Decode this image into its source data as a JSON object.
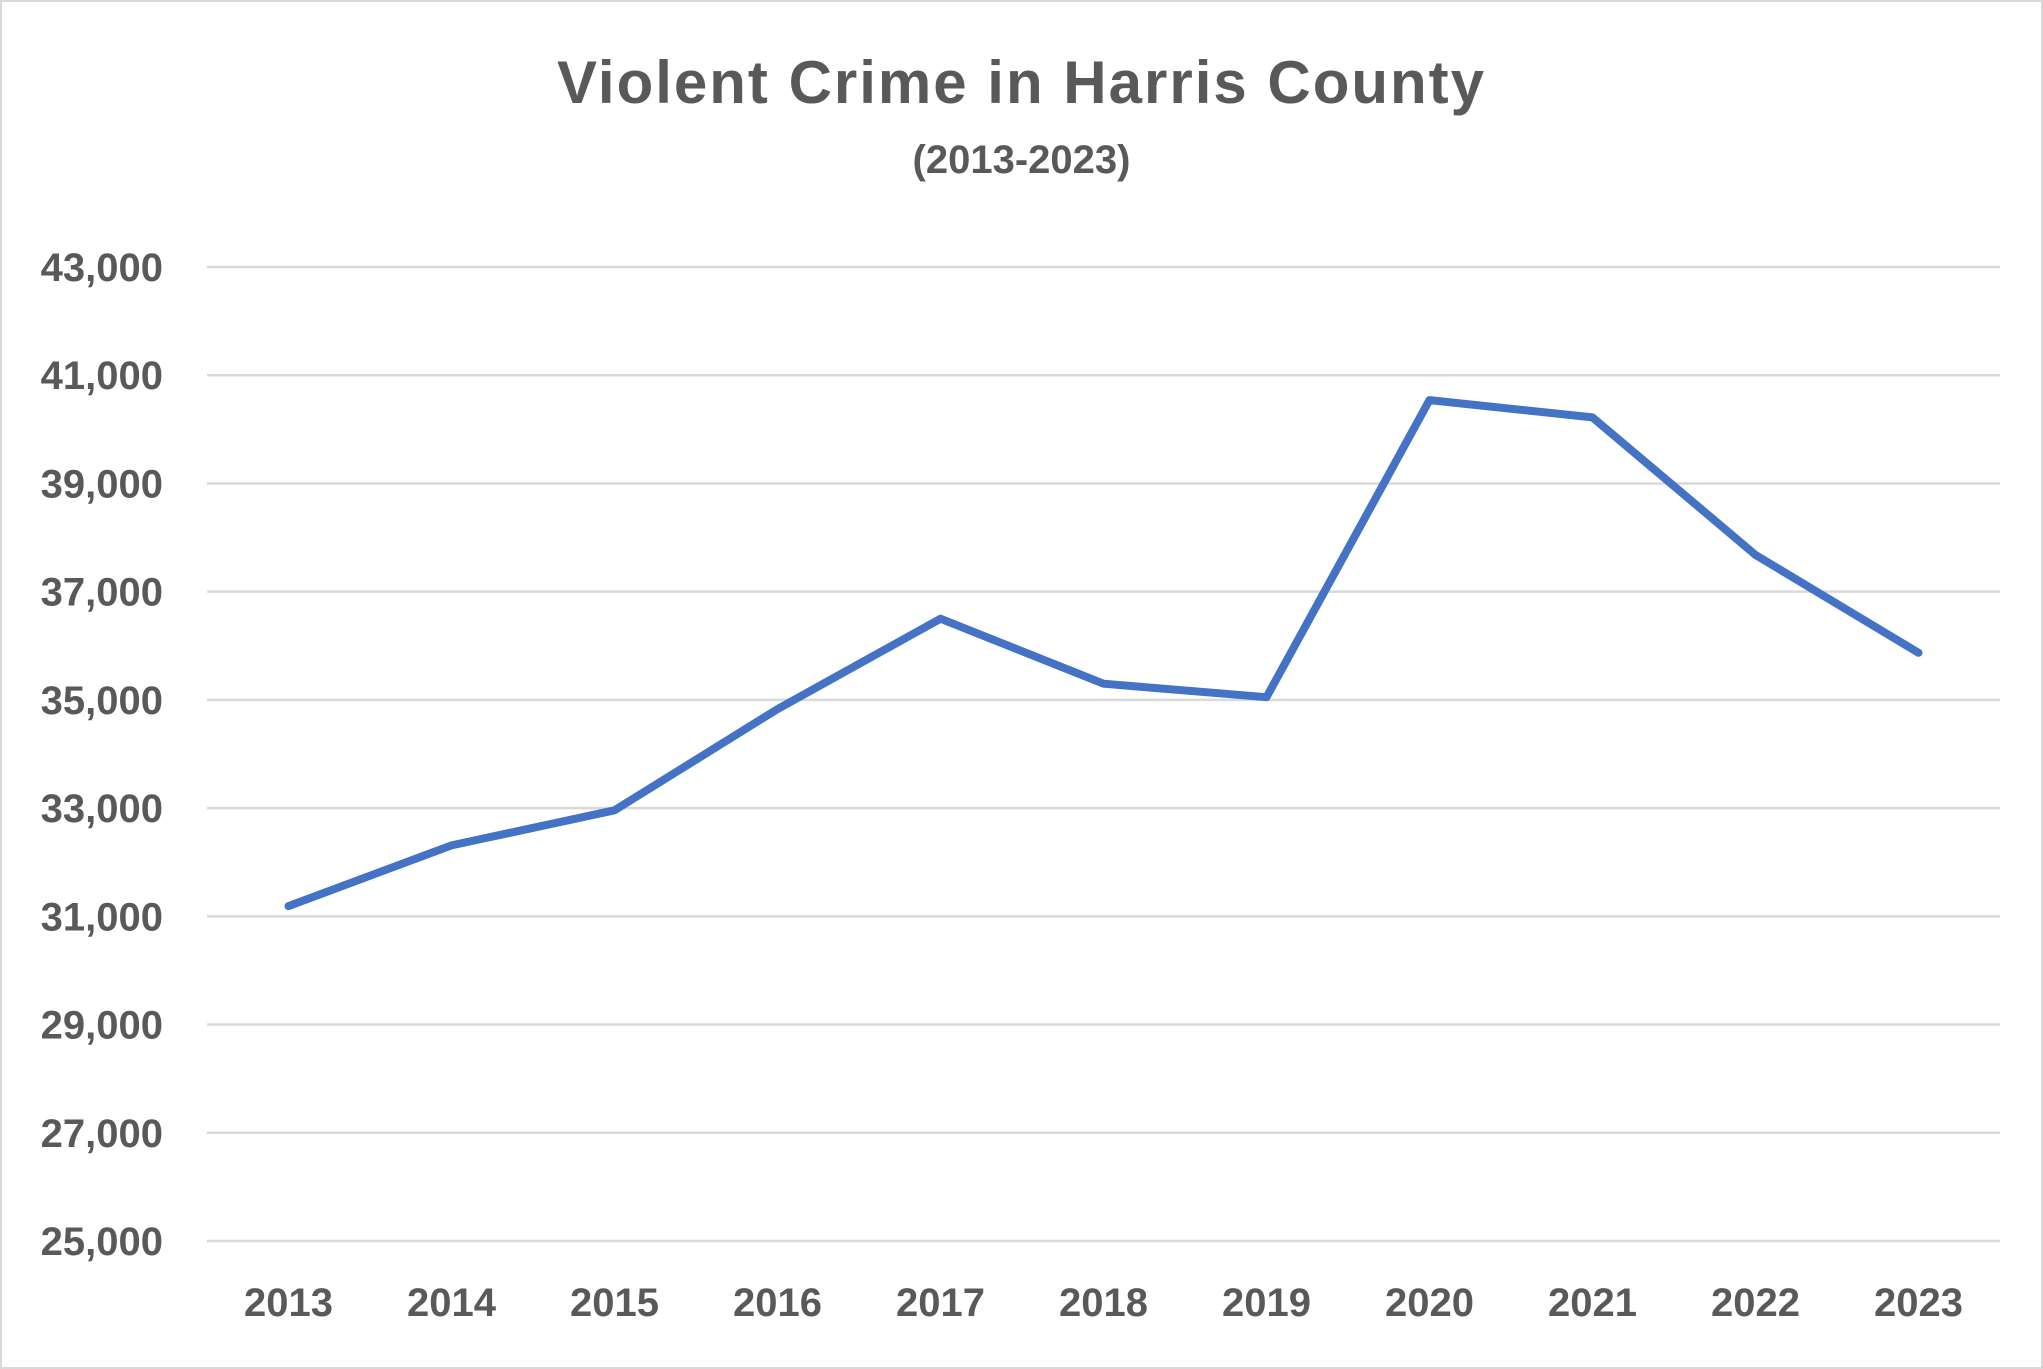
{
  "chart_data": {
    "type": "line",
    "title": "Violent Crime in Harris County",
    "subtitle": "(2013-2023)",
    "xlabel": "",
    "ylabel": "",
    "categories": [
      "2013",
      "2014",
      "2015",
      "2016",
      "2017",
      "2018",
      "2019",
      "2020",
      "2021",
      "2022",
      "2023"
    ],
    "series": [
      {
        "name": "Violent Crime",
        "color": "#4472c4",
        "values": [
          31190,
          32310,
          32960,
          34830,
          36500,
          35300,
          35050,
          40540,
          40220,
          37680,
          35870
        ]
      }
    ],
    "ylim": [
      25000,
      43000
    ],
    "yticks": [
      25000,
      27000,
      29000,
      31000,
      33000,
      35000,
      37000,
      39000,
      41000,
      43000
    ],
    "ytick_labels": [
      "25,000",
      "27,000",
      "29,000",
      "31,000",
      "33,000",
      "35,000",
      "37,000",
      "39,000",
      "41,000",
      "43,000"
    ],
    "grid": true,
    "legend": "none"
  },
  "colors": {
    "line": "#4472c4",
    "grid": "#d9d9d9",
    "text": "#595959"
  }
}
